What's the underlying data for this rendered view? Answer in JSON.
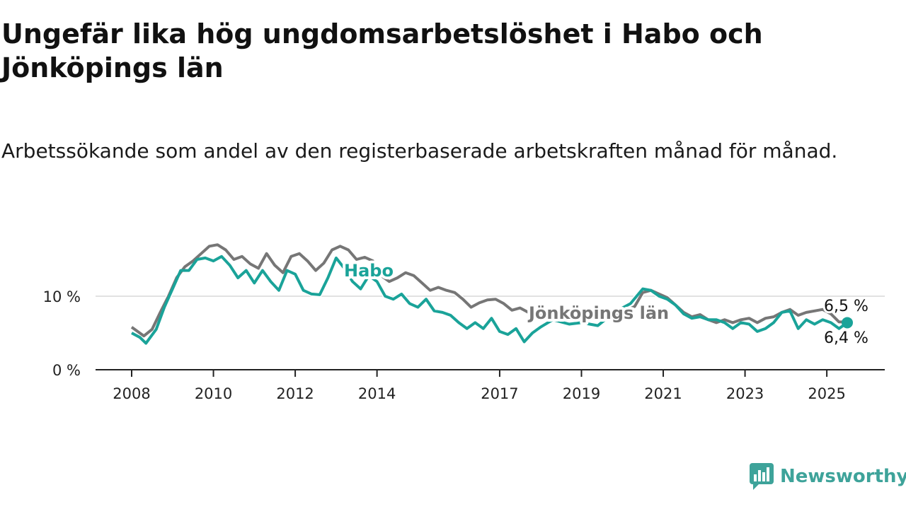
{
  "header": {
    "title": "Ungefär lika hög ungdomsarbetslöshet i Habo och Jönköpings län",
    "subtitle": "Arbetssökande som andel av den registerbaserade arbetskraften månad för månad."
  },
  "brand": {
    "name": "Newsworthy",
    "icon": "newsworthy-logo-icon"
  },
  "colors": {
    "habo": "#1aa399",
    "jonkoping": "#767676",
    "grid": "#d8d8d8",
    "axis": "#222222"
  },
  "chart_data": {
    "type": "line",
    "x_ticks": [
      "2008",
      "2010",
      "2012",
      "2014",
      "2017",
      "2019",
      "2021",
      "2023",
      "2025"
    ],
    "y_ticks": [
      "0 %",
      "10 %"
    ],
    "ylim": [
      0,
      17
    ],
    "xlim": [
      2008,
      2025.5
    ],
    "grid": true,
    "legend": "inline labels",
    "series": [
      {
        "name": "Jönköpings län",
        "color": "#767676",
        "end_label": "6,5 %",
        "points": [
          [
            2008.0,
            5.8
          ],
          [
            2008.3,
            4.6
          ],
          [
            2008.5,
            5.5
          ],
          [
            2008.7,
            7.8
          ],
          [
            2008.9,
            10.0
          ],
          [
            2009.1,
            12.5
          ],
          [
            2009.3,
            14.0
          ],
          [
            2009.5,
            14.8
          ],
          [
            2009.7,
            15.8
          ],
          [
            2009.9,
            16.8
          ],
          [
            2010.1,
            17.0
          ],
          [
            2010.3,
            16.3
          ],
          [
            2010.5,
            15.0
          ],
          [
            2010.7,
            15.4
          ],
          [
            2010.9,
            14.4
          ],
          [
            2011.1,
            13.8
          ],
          [
            2011.3,
            15.8
          ],
          [
            2011.5,
            14.2
          ],
          [
            2011.7,
            13.2
          ],
          [
            2011.9,
            15.4
          ],
          [
            2012.1,
            15.8
          ],
          [
            2012.3,
            14.8
          ],
          [
            2012.5,
            13.5
          ],
          [
            2012.7,
            14.5
          ],
          [
            2012.9,
            16.3
          ],
          [
            2013.1,
            16.8
          ],
          [
            2013.3,
            16.3
          ],
          [
            2013.5,
            15.0
          ],
          [
            2013.7,
            15.3
          ],
          [
            2013.9,
            14.8
          ],
          [
            2014.1,
            12.8
          ],
          [
            2014.3,
            12.0
          ],
          [
            2014.5,
            12.5
          ],
          [
            2014.7,
            13.2
          ],
          [
            2014.9,
            12.8
          ],
          [
            2015.1,
            11.8
          ],
          [
            2015.3,
            10.8
          ],
          [
            2015.5,
            11.2
          ],
          [
            2015.7,
            10.8
          ],
          [
            2015.9,
            10.5
          ],
          [
            2016.1,
            9.6
          ],
          [
            2016.3,
            8.5
          ],
          [
            2016.5,
            9.1
          ],
          [
            2016.7,
            9.5
          ],
          [
            2016.9,
            9.6
          ],
          [
            2017.1,
            9.0
          ],
          [
            2017.3,
            8.1
          ],
          [
            2017.5,
            8.4
          ],
          [
            2017.7,
            7.8
          ],
          [
            2018.0,
            7.5
          ],
          [
            2018.3,
            7.3
          ],
          [
            2018.7,
            7.0
          ],
          [
            2019.0,
            6.8
          ],
          [
            2019.3,
            7.2
          ],
          [
            2019.7,
            7.6
          ],
          [
            2020.0,
            7.8
          ],
          [
            2020.3,
            8.6
          ],
          [
            2020.5,
            10.5
          ],
          [
            2020.7,
            10.8
          ],
          [
            2020.9,
            10.3
          ],
          [
            2021.1,
            9.8
          ],
          [
            2021.3,
            8.8
          ],
          [
            2021.5,
            7.8
          ],
          [
            2021.7,
            7.2
          ],
          [
            2021.9,
            7.5
          ],
          [
            2022.1,
            6.8
          ],
          [
            2022.3,
            6.4
          ],
          [
            2022.5,
            6.8
          ],
          [
            2022.7,
            6.4
          ],
          [
            2022.9,
            6.8
          ],
          [
            2023.1,
            7.0
          ],
          [
            2023.3,
            6.4
          ],
          [
            2023.5,
            7.0
          ],
          [
            2023.7,
            7.2
          ],
          [
            2023.9,
            7.8
          ],
          [
            2024.1,
            8.2
          ],
          [
            2024.3,
            7.4
          ],
          [
            2024.5,
            7.8
          ],
          [
            2024.7,
            8.0
          ],
          [
            2024.9,
            8.2
          ],
          [
            2025.1,
            7.6
          ],
          [
            2025.3,
            6.5
          ],
          [
            2025.5,
            6.5
          ]
        ]
      },
      {
        "name": "Habo",
        "color": "#1aa399",
        "end_label": "6,4 %",
        "points": [
          [
            2008.0,
            5.0
          ],
          [
            2008.2,
            4.4
          ],
          [
            2008.35,
            3.6
          ],
          [
            2008.6,
            5.5
          ],
          [
            2008.8,
            8.5
          ],
          [
            2009.0,
            11.0
          ],
          [
            2009.2,
            13.5
          ],
          [
            2009.4,
            13.5
          ],
          [
            2009.6,
            15.0
          ],
          [
            2009.8,
            15.2
          ],
          [
            2010.0,
            14.8
          ],
          [
            2010.2,
            15.4
          ],
          [
            2010.4,
            14.2
          ],
          [
            2010.6,
            12.5
          ],
          [
            2010.8,
            13.5
          ],
          [
            2011.0,
            11.8
          ],
          [
            2011.2,
            13.5
          ],
          [
            2011.4,
            12.0
          ],
          [
            2011.6,
            10.8
          ],
          [
            2011.8,
            13.5
          ],
          [
            2012.0,
            13.0
          ],
          [
            2012.2,
            10.8
          ],
          [
            2012.4,
            10.3
          ],
          [
            2012.6,
            10.2
          ],
          [
            2012.8,
            12.5
          ],
          [
            2013.0,
            15.2
          ],
          [
            2013.2,
            13.8
          ],
          [
            2013.4,
            12.0
          ],
          [
            2013.6,
            11.0
          ],
          [
            2013.8,
            12.8
          ],
          [
            2014.0,
            12.0
          ],
          [
            2014.2,
            10.0
          ],
          [
            2014.4,
            9.6
          ],
          [
            2014.6,
            10.3
          ],
          [
            2014.8,
            9.0
          ],
          [
            2015.0,
            8.5
          ],
          [
            2015.2,
            9.6
          ],
          [
            2015.4,
            8.0
          ],
          [
            2015.6,
            7.8
          ],
          [
            2015.8,
            7.4
          ],
          [
            2016.0,
            6.4
          ],
          [
            2016.2,
            5.6
          ],
          [
            2016.4,
            6.4
          ],
          [
            2016.6,
            5.6
          ],
          [
            2016.8,
            7.0
          ],
          [
            2017.0,
            5.2
          ],
          [
            2017.2,
            4.8
          ],
          [
            2017.4,
            5.6
          ],
          [
            2017.6,
            3.8
          ],
          [
            2017.8,
            5.0
          ],
          [
            2018.0,
            5.8
          ],
          [
            2018.3,
            6.8
          ],
          [
            2018.7,
            6.2
          ],
          [
            2019.0,
            6.4
          ],
          [
            2019.4,
            6.0
          ],
          [
            2019.8,
            7.8
          ],
          [
            2020.2,
            9.0
          ],
          [
            2020.5,
            11.0
          ],
          [
            2020.7,
            10.8
          ],
          [
            2020.9,
            10.0
          ],
          [
            2021.1,
            9.6
          ],
          [
            2021.3,
            8.8
          ],
          [
            2021.5,
            7.6
          ],
          [
            2021.7,
            7.0
          ],
          [
            2021.9,
            7.2
          ],
          [
            2022.1,
            6.8
          ],
          [
            2022.3,
            6.8
          ],
          [
            2022.5,
            6.4
          ],
          [
            2022.7,
            5.6
          ],
          [
            2022.9,
            6.4
          ],
          [
            2023.1,
            6.2
          ],
          [
            2023.3,
            5.2
          ],
          [
            2023.5,
            5.6
          ],
          [
            2023.7,
            6.4
          ],
          [
            2023.9,
            7.8
          ],
          [
            2024.1,
            8.0
          ],
          [
            2024.3,
            5.6
          ],
          [
            2024.5,
            6.8
          ],
          [
            2024.7,
            6.2
          ],
          [
            2024.9,
            6.8
          ],
          [
            2025.1,
            6.4
          ],
          [
            2025.3,
            5.6
          ],
          [
            2025.5,
            6.4
          ]
        ]
      }
    ]
  }
}
